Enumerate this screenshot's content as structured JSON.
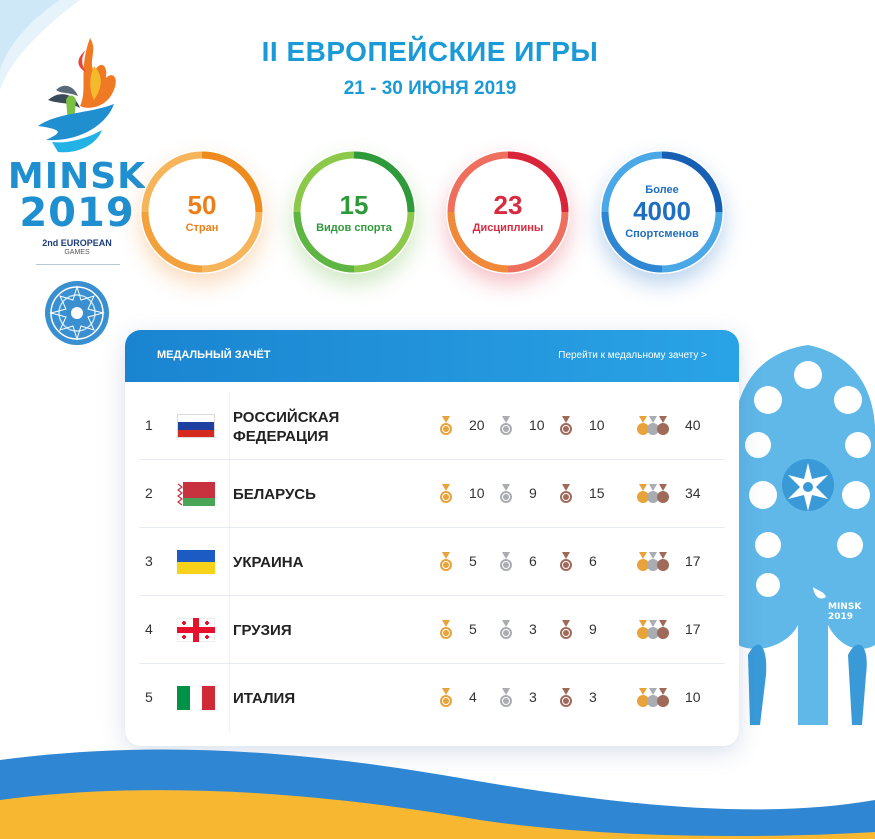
{
  "header": {
    "title": "II ЕВРОПЕЙСКИЕ ИГРЫ",
    "dates": "21 - 30 ИЮНЯ 2019"
  },
  "logo": {
    "word1": "MINSK",
    "word2": "2019",
    "sub1": "2nd EUROPEAN",
    "sub2": "GAMES",
    "tree_word1": "MINSK",
    "tree_word2": "2019"
  },
  "stats": [
    {
      "prefix": "",
      "value": "50",
      "label": "Стран",
      "color": "#ec8a1f"
    },
    {
      "prefix": "",
      "value": "15",
      "label": "Видов спорта",
      "color": "#3fa13c"
    },
    {
      "prefix": "",
      "value": "23",
      "label": "Дисциплины",
      "color": "#e0313f"
    },
    {
      "prefix": "Более",
      "value": "4000",
      "label": "Спортсменов",
      "color": "#1e7cc8"
    }
  ],
  "medal_table": {
    "title": "МЕДАЛЬНЫЙ ЗАЧЁТ",
    "link": "Перейти к медальному зачету >",
    "rows": [
      {
        "rank": "1",
        "country_line1": "РОССИЙСКАЯ",
        "country_line2": "ФЕДЕРАЦИЯ",
        "flag": "russia",
        "gold": "20",
        "silver": "10",
        "bronze": "10",
        "total": "40"
      },
      {
        "rank": "2",
        "country_line1": "БЕЛАРУСЬ",
        "country_line2": "",
        "flag": "belarus",
        "gold": "10",
        "silver": "9",
        "bronze": "15",
        "total": "34"
      },
      {
        "rank": "3",
        "country_line1": "УКРАИНА",
        "country_line2": "",
        "flag": "ukraine",
        "gold": "5",
        "silver": "6",
        "bronze": "6",
        "total": "17"
      },
      {
        "rank": "4",
        "country_line1": "ГРУЗИЯ",
        "country_line2": "",
        "flag": "georgia",
        "gold": "5",
        "silver": "3",
        "bronze": "9",
        "total": "17"
      },
      {
        "rank": "5",
        "country_line1": "ИТАЛИЯ",
        "country_line2": "",
        "flag": "italy",
        "gold": "4",
        "silver": "3",
        "bronze": "3",
        "total": "10"
      }
    ]
  },
  "colors": {
    "accent": "#1a9ad6",
    "gold": "#e8a23a",
    "silver": "#a9adb2",
    "bronze": "#a06a5a"
  }
}
